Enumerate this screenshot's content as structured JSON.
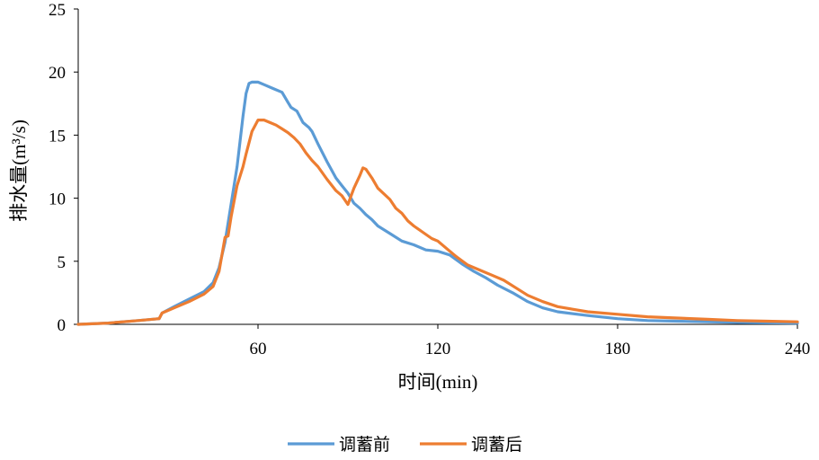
{
  "chart_data": {
    "type": "line",
    "xlabel": "时间(min)",
    "ylabel": "排水量(m³/s)",
    "xlim": [
      0,
      240
    ],
    "ylim": [
      0,
      25
    ],
    "x_ticks": [
      60,
      120,
      180,
      240
    ],
    "y_ticks": [
      0,
      5,
      10,
      15,
      20,
      25
    ],
    "grid": false,
    "legend_position": "bottom",
    "series": [
      {
        "name": "调蓄前",
        "color": "#5B9BD5",
        "points": [
          [
            0,
            0
          ],
          [
            10,
            0.1
          ],
          [
            20,
            0.3
          ],
          [
            27,
            0.45
          ],
          [
            28,
            0.9
          ],
          [
            32,
            1.4
          ],
          [
            37,
            2.0
          ],
          [
            42,
            2.6
          ],
          [
            45,
            3.3
          ],
          [
            47,
            4.5
          ],
          [
            49,
            6.5
          ],
          [
            51,
            9.5
          ],
          [
            53,
            12.5
          ],
          [
            54,
            14.5
          ],
          [
            55,
            16.5
          ],
          [
            56,
            18.3
          ],
          [
            57,
            19.1
          ],
          [
            58,
            19.2
          ],
          [
            60,
            19.2
          ],
          [
            62,
            19.0
          ],
          [
            65,
            18.7
          ],
          [
            68,
            18.4
          ],
          [
            70,
            17.6
          ],
          [
            71,
            17.2
          ],
          [
            73,
            16.9
          ],
          [
            75,
            16.0
          ],
          [
            77,
            15.6
          ],
          [
            78,
            15.3
          ],
          [
            80,
            14.3
          ],
          [
            83,
            12.9
          ],
          [
            86,
            11.6
          ],
          [
            88,
            11.0
          ],
          [
            90,
            10.4
          ],
          [
            92,
            9.6
          ],
          [
            94,
            9.2
          ],
          [
            96,
            8.7
          ],
          [
            98,
            8.3
          ],
          [
            100,
            7.8
          ],
          [
            104,
            7.2
          ],
          [
            108,
            6.6
          ],
          [
            112,
            6.3
          ],
          [
            116,
            5.9
          ],
          [
            120,
            5.8
          ],
          [
            124,
            5.5
          ],
          [
            128,
            4.8
          ],
          [
            132,
            4.2
          ],
          [
            136,
            3.7
          ],
          [
            140,
            3.1
          ],
          [
            145,
            2.5
          ],
          [
            150,
            1.8
          ],
          [
            155,
            1.3
          ],
          [
            160,
            1.0
          ],
          [
            170,
            0.7
          ],
          [
            180,
            0.45
          ],
          [
            190,
            0.3
          ],
          [
            200,
            0.25
          ],
          [
            210,
            0.2
          ],
          [
            220,
            0.15
          ],
          [
            230,
            0.12
          ],
          [
            240,
            0.1
          ]
        ]
      },
      {
        "name": "调蓄后",
        "color": "#ED7D31",
        "points": [
          [
            0,
            0
          ],
          [
            10,
            0.1
          ],
          [
            20,
            0.3
          ],
          [
            27,
            0.45
          ],
          [
            28,
            0.9
          ],
          [
            32,
            1.3
          ],
          [
            37,
            1.8
          ],
          [
            42,
            2.4
          ],
          [
            45,
            3.0
          ],
          [
            47,
            4.2
          ],
          [
            49,
            6.9
          ],
          [
            50,
            7.0
          ],
          [
            51,
            8.5
          ],
          [
            53,
            11.0
          ],
          [
            55,
            12.5
          ],
          [
            56,
            13.5
          ],
          [
            58,
            15.3
          ],
          [
            60,
            16.2
          ],
          [
            62,
            16.2
          ],
          [
            64,
            16.0
          ],
          [
            66,
            15.8
          ],
          [
            68,
            15.5
          ],
          [
            70,
            15.2
          ],
          [
            72,
            14.8
          ],
          [
            74,
            14.3
          ],
          [
            76,
            13.6
          ],
          [
            78,
            13.0
          ],
          [
            80,
            12.5
          ],
          [
            83,
            11.5
          ],
          [
            86,
            10.6
          ],
          [
            88,
            10.2
          ],
          [
            90,
            9.5
          ],
          [
            92,
            10.8
          ],
          [
            94,
            11.8
          ],
          [
            95,
            12.4
          ],
          [
            96,
            12.3
          ],
          [
            98,
            11.6
          ],
          [
            100,
            10.8
          ],
          [
            104,
            9.9
          ],
          [
            106,
            9.2
          ],
          [
            108,
            8.8
          ],
          [
            110,
            8.2
          ],
          [
            112,
            7.8
          ],
          [
            115,
            7.3
          ],
          [
            118,
            6.8
          ],
          [
            120,
            6.6
          ],
          [
            123,
            6.0
          ],
          [
            126,
            5.4
          ],
          [
            130,
            4.7
          ],
          [
            134,
            4.3
          ],
          [
            138,
            3.9
          ],
          [
            142,
            3.5
          ],
          [
            146,
            2.9
          ],
          [
            150,
            2.3
          ],
          [
            155,
            1.8
          ],
          [
            160,
            1.4
          ],
          [
            165,
            1.2
          ],
          [
            170,
            1.0
          ],
          [
            180,
            0.8
          ],
          [
            190,
            0.6
          ],
          [
            200,
            0.5
          ],
          [
            210,
            0.4
          ],
          [
            220,
            0.3
          ],
          [
            230,
            0.25
          ],
          [
            240,
            0.2
          ]
        ]
      }
    ]
  }
}
